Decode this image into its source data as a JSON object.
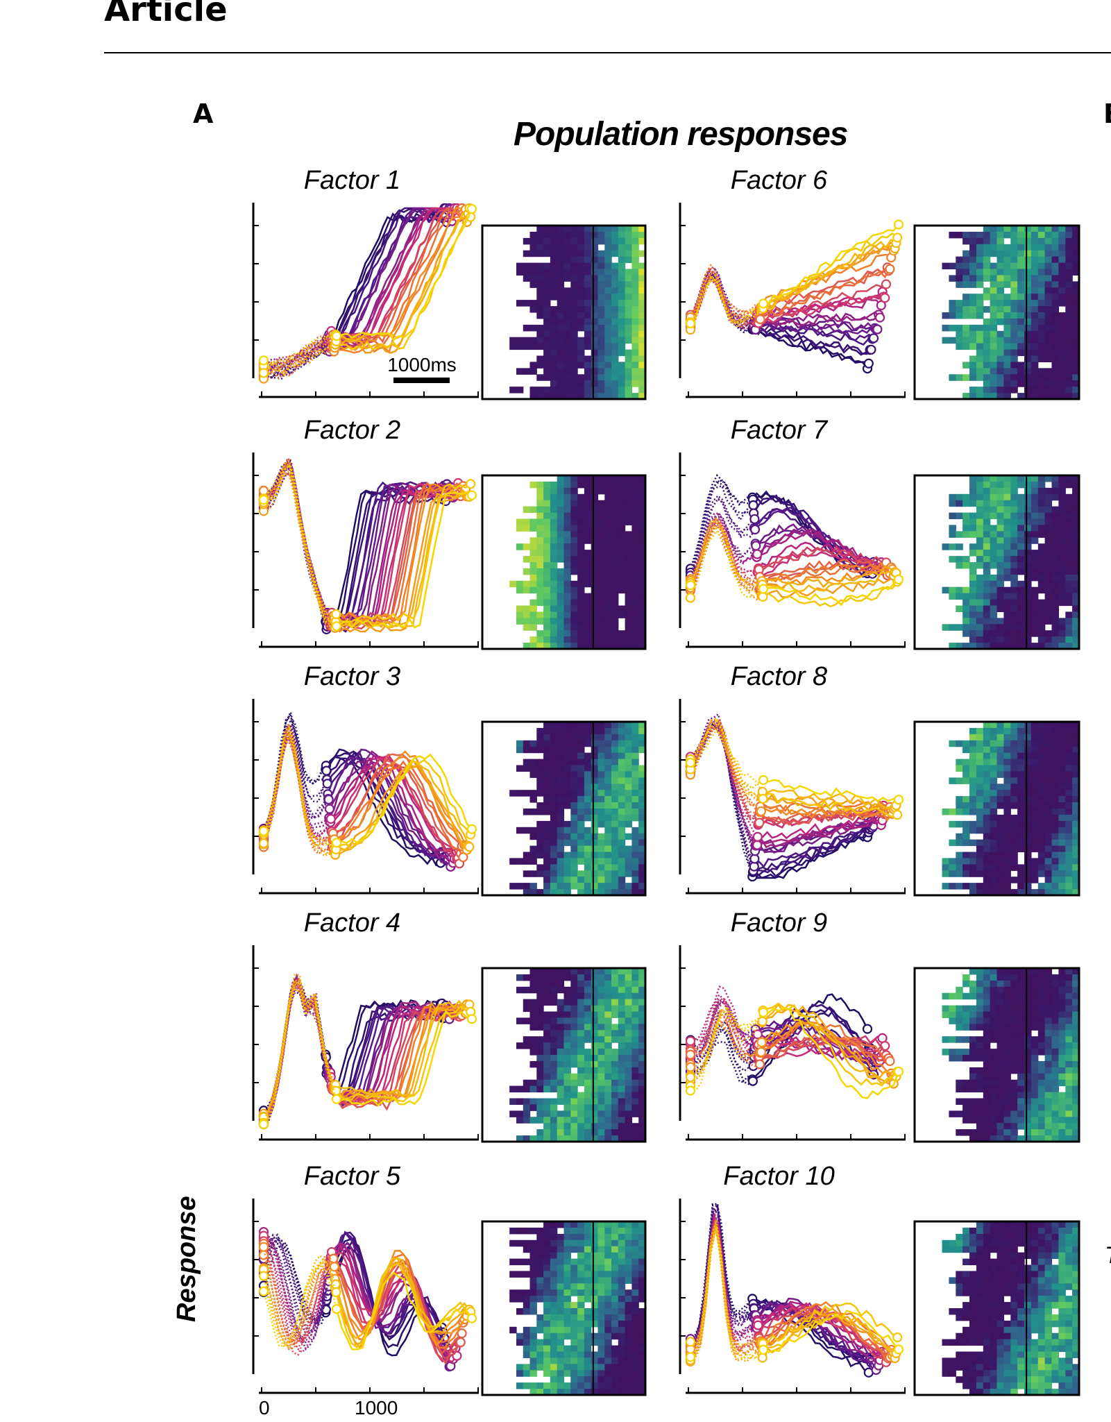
{
  "header": {
    "title": "Article"
  },
  "panels": {
    "a": "A",
    "b": "B"
  },
  "section_title": "Population responses",
  "y_axis_title": "Response",
  "x_ticks": [
    "0",
    "1000"
  ],
  "scale_bar_label": "1000ms",
  "cut_text": "T",
  "colors": {
    "trace_low": "#1f0c64",
    "trace_mid": "#c2257d",
    "trace_high": "#f6d600",
    "heatmap_low": "#3b1869",
    "heatmap_mid": "#22938b",
    "heatmap_high": "#fde724"
  },
  "factors": [
    {
      "label": "Factor 1",
      "shape": "rise"
    },
    {
      "label": "Factor 2",
      "shape": "dip"
    },
    {
      "label": "Factor 3",
      "shape": "peakdecay"
    },
    {
      "label": "Factor 4",
      "shape": "peakdip"
    },
    {
      "label": "Factor 5",
      "shape": "multi"
    },
    {
      "label": "Factor 6",
      "shape": "spread"
    },
    {
      "label": "Factor 7",
      "shape": "hump"
    },
    {
      "label": "Factor 8",
      "shape": "fan"
    },
    {
      "label": "Factor 9",
      "shape": "noisy"
    },
    {
      "label": "Factor 10",
      "shape": "low"
    }
  ]
}
